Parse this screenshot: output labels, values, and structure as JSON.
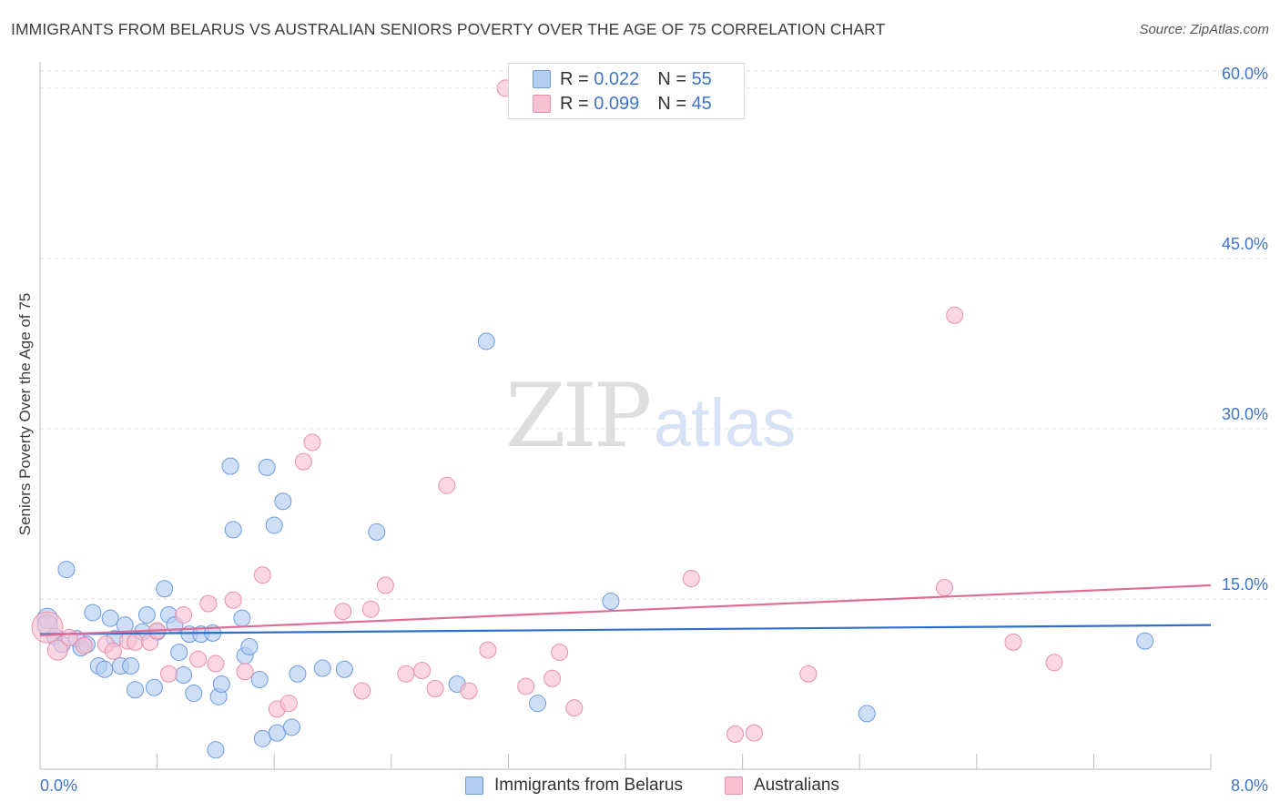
{
  "title": "IMMIGRANTS FROM BELARUS VS AUSTRALIAN SENIORS POVERTY OVER THE AGE OF 75 CORRELATION CHART",
  "source": "Source: ZipAtlas.com",
  "watermark": {
    "zip": "ZIP",
    "atlas": "atlas"
  },
  "legend": {
    "r_label": "R =",
    "n_label": "N =",
    "series": [
      {
        "name": "Immigrants from Belarus",
        "r": "0.022",
        "n": "55"
      },
      {
        "name": "Australians",
        "r": "0.099",
        "n": "45"
      }
    ]
  },
  "colors": {
    "blue_fill": "#b3cdf0",
    "blue_stroke": "#6d9be0",
    "blue_line": "#2f6fd1",
    "pink_fill": "#f7c1d2",
    "pink_stroke": "#e890ad",
    "pink_line": "#e06b97",
    "axis_text": "#3f74c9",
    "grid": "#dcdcdc"
  },
  "chart_data": {
    "type": "scatter",
    "title": "IMMIGRANTS FROM BELARUS VS AUSTRALIAN SENIORS POVERTY OVER THE AGE OF 75 CORRELATION CHART",
    "xlabel": "",
    "ylabel": "Seniors Poverty Over the Age of 75",
    "xlim": [
      0,
      8
    ],
    "ylim": [
      0,
      62
    ],
    "x_tick_labels": [
      {
        "value": 0,
        "label": "0.0%"
      },
      {
        "value": 8,
        "label": "8.0%"
      }
    ],
    "y_tick_labels": [
      {
        "value": 15,
        "label": "15.0%"
      },
      {
        "value": 30,
        "label": "30.0%"
      },
      {
        "value": 45,
        "label": "45.0%"
      },
      {
        "value": 60,
        "label": "60.0%"
      }
    ],
    "x_minor_ticks": [
      0.8,
      1.6,
      2.4,
      3.2,
      4.0,
      4.8,
      5.6,
      6.4,
      7.2,
      8.0
    ],
    "series": [
      {
        "name": "Immigrants from Belarus",
        "r": 0.022,
        "n": 55,
        "trend": {
          "x": [
            0,
            8
          ],
          "y": [
            11.9,
            12.7
          ]
        },
        "points": [
          [
            0.05,
            13.3,
            11
          ],
          [
            0.05,
            12.7,
            11
          ],
          [
            0.1,
            11.7,
            9
          ],
          [
            0.15,
            11.0,
            9
          ],
          [
            0.18,
            17.6,
            9
          ],
          [
            0.25,
            11.5,
            9
          ],
          [
            0.28,
            10.7,
            9
          ],
          [
            0.32,
            11.0,
            9
          ],
          [
            0.36,
            13.8,
            9
          ],
          [
            0.4,
            9.1,
            9
          ],
          [
            0.44,
            8.8,
            9
          ],
          [
            0.48,
            13.3,
            9
          ],
          [
            0.51,
            11.5,
            9
          ],
          [
            0.55,
            9.1,
            9
          ],
          [
            0.58,
            12.7,
            9
          ],
          [
            0.62,
            9.1,
            9
          ],
          [
            0.65,
            7.0,
            9
          ],
          [
            0.7,
            12.1,
            9
          ],
          [
            0.73,
            13.6,
            9
          ],
          [
            0.78,
            7.2,
            9
          ],
          [
            0.8,
            12.1,
            9
          ],
          [
            0.85,
            15.9,
            9
          ],
          [
            0.88,
            13.6,
            9
          ],
          [
            0.92,
            12.7,
            9
          ],
          [
            0.95,
            10.3,
            9
          ],
          [
            0.98,
            8.3,
            9
          ],
          [
            1.02,
            11.9,
            9
          ],
          [
            1.05,
            6.7,
            9
          ],
          [
            1.1,
            11.9,
            9
          ],
          [
            1.2,
            1.7,
            9
          ],
          [
            1.22,
            6.4,
            9
          ],
          [
            1.24,
            7.5,
            9
          ],
          [
            1.3,
            26.7,
            9
          ],
          [
            1.32,
            21.1,
            9
          ],
          [
            1.38,
            13.3,
            9
          ],
          [
            1.4,
            10.0,
            9
          ],
          [
            1.43,
            10.8,
            9
          ],
          [
            1.5,
            7.9,
            9
          ],
          [
            1.52,
            2.7,
            9
          ],
          [
            1.55,
            26.6,
            9
          ],
          [
            1.6,
            21.5,
            9
          ],
          [
            1.62,
            3.2,
            9
          ],
          [
            1.66,
            23.6,
            9
          ],
          [
            1.72,
            3.7,
            9
          ],
          [
            1.76,
            8.4,
            9
          ],
          [
            1.93,
            8.9,
            9
          ],
          [
            2.08,
            8.8,
            9
          ],
          [
            2.3,
            20.9,
            9
          ],
          [
            2.85,
            7.5,
            9
          ],
          [
            3.05,
            37.7,
            9
          ],
          [
            3.4,
            5.8,
            9
          ],
          [
            3.9,
            14.8,
            9
          ],
          [
            5.65,
            4.9,
            9
          ],
          [
            7.55,
            11.3,
            9
          ],
          [
            1.18,
            12.0,
            9
          ]
        ]
      },
      {
        "name": "Australians",
        "r": 0.099,
        "n": 45,
        "trend": {
          "x": [
            0,
            8
          ],
          "y": [
            11.8,
            16.2
          ]
        },
        "points": [
          [
            0.05,
            12.5,
            17
          ],
          [
            0.12,
            10.5,
            11
          ],
          [
            0.2,
            11.6,
            9
          ],
          [
            0.3,
            10.9,
            9
          ],
          [
            0.45,
            11.0,
            9
          ],
          [
            0.5,
            10.4,
            9
          ],
          [
            0.6,
            11.3,
            9
          ],
          [
            0.65,
            11.2,
            9
          ],
          [
            0.75,
            11.2,
            9
          ],
          [
            0.8,
            12.2,
            9
          ],
          [
            0.88,
            8.4,
            9
          ],
          [
            0.98,
            13.6,
            9
          ],
          [
            1.08,
            9.7,
            9
          ],
          [
            1.15,
            14.6,
            9
          ],
          [
            1.2,
            9.3,
            9
          ],
          [
            1.32,
            14.9,
            9
          ],
          [
            1.4,
            8.6,
            9
          ],
          [
            1.52,
            17.1,
            9
          ],
          [
            1.62,
            5.3,
            9
          ],
          [
            1.7,
            5.8,
            9
          ],
          [
            1.8,
            27.1,
            9
          ],
          [
            1.86,
            28.8,
            9
          ],
          [
            2.07,
            13.9,
            9
          ],
          [
            2.2,
            6.9,
            9
          ],
          [
            2.26,
            14.1,
            9
          ],
          [
            2.36,
            16.2,
            9
          ],
          [
            2.5,
            8.4,
            9
          ],
          [
            2.61,
            8.7,
            9
          ],
          [
            2.7,
            7.1,
            9
          ],
          [
            2.78,
            25.0,
            9
          ],
          [
            2.93,
            6.9,
            9
          ],
          [
            3.06,
            10.5,
            9
          ],
          [
            3.18,
            60.0,
            9
          ],
          [
            3.32,
            7.3,
            9
          ],
          [
            3.5,
            8.0,
            9
          ],
          [
            3.55,
            10.3,
            9
          ],
          [
            3.65,
            5.4,
            9
          ],
          [
            4.45,
            16.8,
            9
          ],
          [
            4.75,
            3.1,
            9
          ],
          [
            4.88,
            3.2,
            9
          ],
          [
            5.25,
            8.4,
            9
          ],
          [
            6.18,
            16.0,
            9
          ],
          [
            6.25,
            40.0,
            9
          ],
          [
            6.65,
            11.2,
            9
          ],
          [
            6.93,
            9.4,
            9
          ]
        ]
      }
    ]
  }
}
